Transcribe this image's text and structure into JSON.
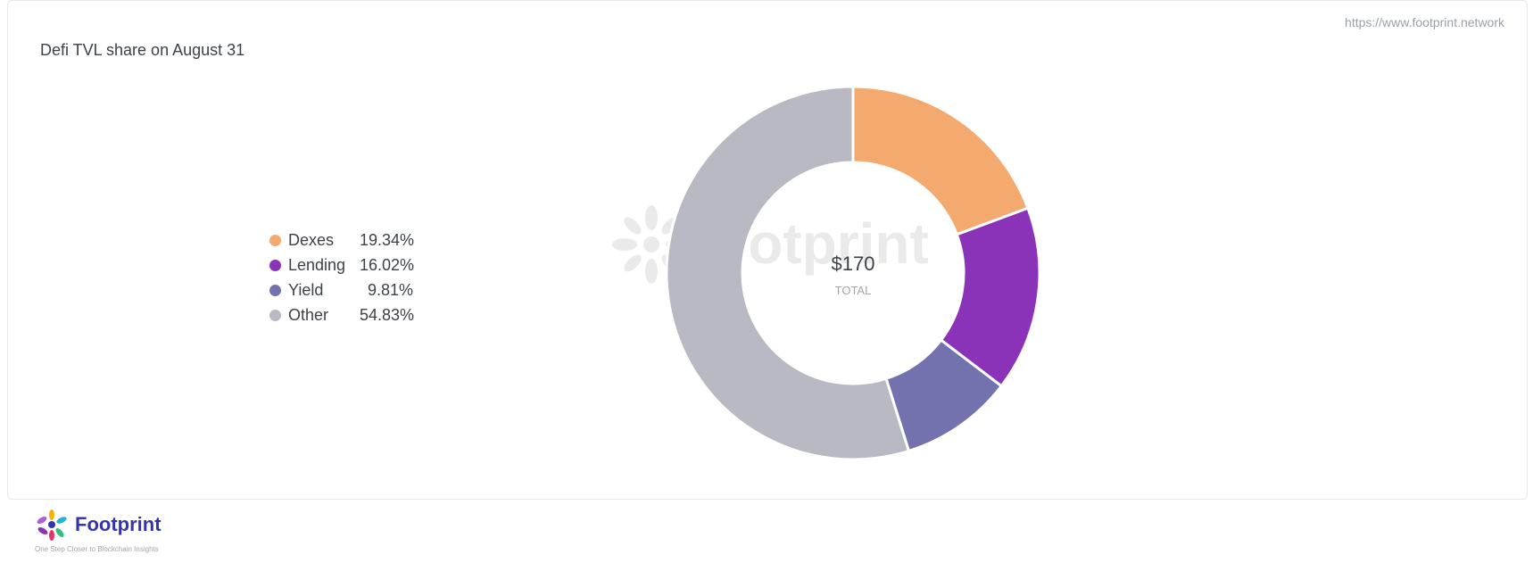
{
  "source_url": "https://www.footprint.network",
  "chart_data": {
    "type": "pie",
    "title": "Defi TVL share on August 31",
    "categories": [
      "Dexes",
      "Lending",
      "Yield",
      "Other"
    ],
    "values": [
      19.34,
      16.02,
      9.81,
      54.83
    ],
    "value_labels": [
      "19.34%",
      "16.02%",
      "9.81%",
      "54.83%"
    ],
    "colors": [
      "#f4a96f",
      "#8a32b8",
      "#7372ae",
      "#b8b9c2"
    ],
    "center_value": "$170",
    "center_label": "TOTAL",
    "legend_position": "left",
    "donut": true
  },
  "watermark_text": "Footprint",
  "footer": {
    "brand": "Footprint",
    "tagline": "One Step Closer to Blockchain Insights"
  }
}
